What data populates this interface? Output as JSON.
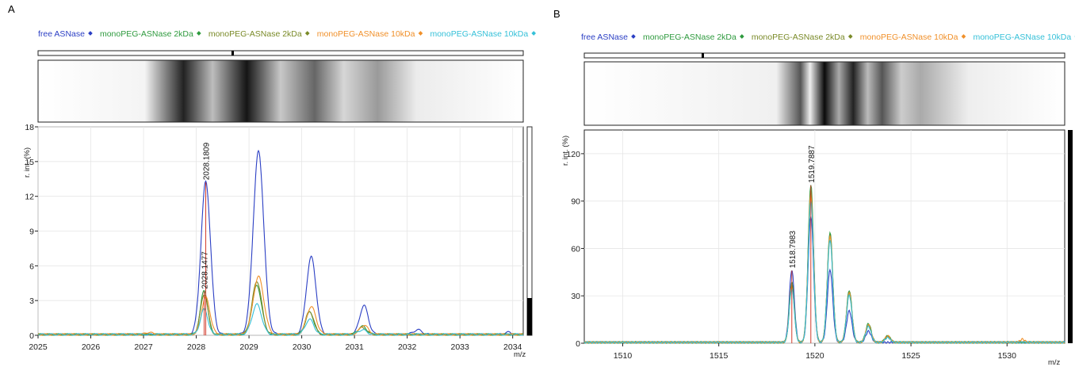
{
  "chart_data": [
    {
      "panel": "A",
      "type": "line",
      "legend": [
        {
          "name": "free ASNase",
          "color": "#2b3fc4"
        },
        {
          "name": "monoPEG-ASNase 2kDa",
          "color": "#2e9a3e"
        },
        {
          "name": "monoPEG-ASNase 2kDa",
          "color": "#7a8a28"
        },
        {
          "name": "monoPEG-ASNase 10kDa",
          "color": "#f0902a"
        },
        {
          "name": "monoPEG-ASNase 10kDa",
          "color": "#35c0d8"
        }
      ],
      "legend_placement": "top",
      "xlabel": "m/z",
      "ylabel": "r. int. (%)",
      "xlim": [
        2025,
        2034.2
      ],
      "ylim": [
        0,
        18
      ],
      "xticks": [
        "2025",
        "2026",
        "2027",
        "2028",
        "2029",
        "2030",
        "2031",
        "2032",
        "2033",
        "2034"
      ],
      "yticks": [
        "0",
        "3",
        "6",
        "9",
        "12",
        "15",
        "18"
      ],
      "grid": true,
      "peak_annotations": [
        {
          "label": "2028.1809",
          "x": 2028.18,
          "y": 13.2
        },
        {
          "label": "2028.1477",
          "x": 2028.15,
          "y": 3.8
        }
      ],
      "series": [
        {
          "name": "free ASNase",
          "color": "#2b3fc4",
          "peaks": [
            [
              2028.18,
              13.2,
              0.09
            ],
            [
              2029.18,
              15.8,
              0.1
            ],
            [
              2030.18,
              6.7,
              0.09
            ],
            [
              2031.18,
              2.5,
              0.08
            ],
            [
              2032.2,
              0.4,
              0.08
            ],
            [
              2033.9,
              0.2,
              0.06
            ]
          ]
        },
        {
          "name": "monoPEG-ASNase 2kDa",
          "color": "#2e9a3e",
          "peaks": [
            [
              2028.15,
              3.8,
              0.07
            ],
            [
              2029.15,
              4.2,
              0.09
            ],
            [
              2030.15,
              1.9,
              0.08
            ],
            [
              2031.15,
              0.7,
              0.08
            ]
          ]
        },
        {
          "name": "monoPEG-ASNase 2kDa",
          "color": "#7a8a28",
          "peaks": [
            [
              2028.15,
              3.5,
              0.07
            ],
            [
              2029.15,
              4.6,
              0.09
            ],
            [
              2030.15,
              2.0,
              0.08
            ],
            [
              2031.15,
              0.6,
              0.08
            ]
          ]
        },
        {
          "name": "monoPEG-ASNase 10kDa",
          "color": "#f0902a",
          "peaks": [
            [
              2028.18,
              3.2,
              0.08
            ],
            [
              2029.18,
              5.0,
              0.1
            ],
            [
              2030.18,
              2.4,
              0.09
            ],
            [
              2031.18,
              0.8,
              0.08
            ],
            [
              2027.1,
              0.2,
              0.06
            ]
          ]
        },
        {
          "name": "monoPEG-ASNase 10kDa",
          "color": "#35c0d8",
          "peaks": [
            [
              2028.15,
              2.2,
              0.07
            ],
            [
              2029.15,
              2.6,
              0.09
            ],
            [
              2030.15,
              1.3,
              0.08
            ],
            [
              2031.15,
              0.4,
              0.08
            ]
          ]
        }
      ]
    },
    {
      "panel": "B",
      "type": "line",
      "legend": [
        {
          "name": "free ASNase",
          "color": "#2b3fc4"
        },
        {
          "name": "monoPEG-ASNase 2kDa",
          "color": "#2e9a3e"
        },
        {
          "name": "monoPEG-ASNase 2kDa",
          "color": "#7a8a28"
        },
        {
          "name": "monoPEG-ASNase 10kDa",
          "color": "#f0902a"
        },
        {
          "name": "monoPEG-ASNase 10kDa",
          "color": "#35c0d8"
        }
      ],
      "legend_placement": "top",
      "xlabel": "m/z",
      "ylabel": "r. int. (%)",
      "xlim": [
        1508,
        1533
      ],
      "ylim": [
        0,
        135
      ],
      "xticks": [
        "1510",
        "1515",
        "1520",
        "1525",
        "1530"
      ],
      "yticks": [
        "0",
        "30",
        "60",
        "90",
        "120"
      ],
      "grid": true,
      "peak_annotations": [
        {
          "label": "1519.7887",
          "x": 1519.79,
          "y": 100
        },
        {
          "label": "1518.7983",
          "x": 1518.8,
          "y": 46
        }
      ],
      "series": [
        {
          "name": "free ASNase",
          "color": "#2b3fc4",
          "peaks": [
            [
              1518.8,
              46,
              0.13
            ],
            [
              1519.79,
              80,
              0.14
            ],
            [
              1520.79,
              46,
              0.14
            ],
            [
              1521.79,
              20,
              0.14
            ],
            [
              1522.79,
              7,
              0.14
            ]
          ]
        },
        {
          "name": "monoPEG-ASNase 2kDa",
          "color": "#2e9a3e",
          "peaks": [
            [
              1518.8,
              38,
              0.13
            ],
            [
              1519.79,
              100,
              0.14
            ],
            [
              1520.79,
              70,
              0.14
            ],
            [
              1521.79,
              33,
              0.14
            ],
            [
              1522.79,
              12,
              0.14
            ],
            [
              1523.79,
              4,
              0.14
            ]
          ]
        },
        {
          "name": "monoPEG-ASNase 2kDa",
          "color": "#7a8a28",
          "peaks": [
            [
              1518.8,
              36,
              0.13
            ],
            [
              1519.79,
              96,
              0.14
            ],
            [
              1520.79,
              68,
              0.14
            ],
            [
              1521.79,
              32,
              0.14
            ],
            [
              1522.79,
              11,
              0.14
            ],
            [
              1523.79,
              4,
              0.14
            ]
          ]
        },
        {
          "name": "monoPEG-ASNase 10kDa",
          "color": "#f0902a",
          "peaks": [
            [
              1518.8,
              35,
              0.13
            ],
            [
              1519.79,
              93,
              0.14
            ],
            [
              1520.79,
              67,
              0.14
            ],
            [
              1521.79,
              31,
              0.14
            ],
            [
              1522.79,
              11,
              0.14
            ],
            [
              1523.79,
              4,
              0.14
            ],
            [
              1530.8,
              2,
              0.12
            ]
          ]
        },
        {
          "name": "monoPEG-ASNase 10kDa",
          "color": "#35c0d8",
          "peaks": [
            [
              1518.8,
              34,
              0.13
            ],
            [
              1519.79,
              90,
              0.14
            ],
            [
              1520.79,
              65,
              0.14
            ],
            [
              1521.79,
              30,
              0.14
            ],
            [
              1522.79,
              10,
              0.14
            ],
            [
              1523.79,
              3,
              0.14
            ]
          ]
        }
      ]
    }
  ]
}
